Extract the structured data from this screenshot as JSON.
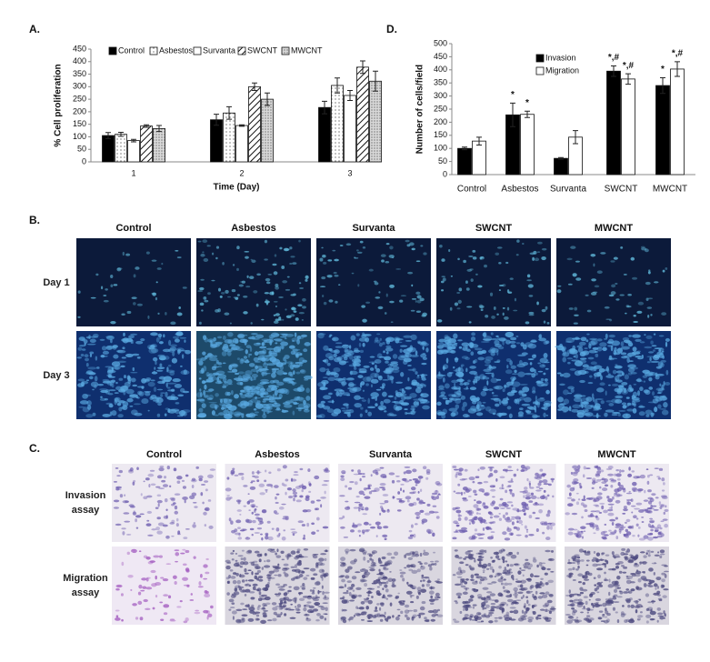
{
  "chart_data": [
    {
      "type": "bar",
      "panel_label": "A.",
      "y_label": "% Cell proliferation",
      "x_label": "Time (Day)",
      "categories": [
        "1",
        "2",
        "3"
      ],
      "ylim": [
        0,
        450
      ],
      "yticks": [
        0,
        50,
        100,
        150,
        200,
        250,
        300,
        350,
        400,
        450
      ],
      "series": [
        {
          "name": "Control",
          "color": "#000000",
          "values": [
            105,
            168,
            217
          ],
          "errors": [
            12,
            22,
            25
          ]
        },
        {
          "name": "Asbestos",
          "color": "#ffffff",
          "pattern": "sparse-dots",
          "values": [
            110,
            195,
            305
          ],
          "errors": [
            8,
            25,
            30
          ]
        },
        {
          "name": "Survanta",
          "color": "#ffffff",
          "values": [
            85,
            145,
            265
          ],
          "errors": [
            5,
            3,
            20
          ]
        },
        {
          "name": "SWCNT",
          "color": "#ffffff",
          "pattern": "diagonal",
          "values": [
            143,
            300,
            378
          ],
          "errors": [
            5,
            15,
            25
          ]
        },
        {
          "name": "MWCNT",
          "color": "#d9d9d9",
          "pattern": "dense-dots",
          "values": [
            133,
            250,
            322
          ],
          "errors": [
            12,
            25,
            40
          ]
        }
      ]
    },
    {
      "type": "bar",
      "panel_label": "D.",
      "y_label": "Number of cells/field",
      "categories": [
        "Control",
        "Asbestos",
        "Survanta",
        "SWCNT",
        "MWCNT"
      ],
      "ylim": [
        0,
        500
      ],
      "yticks": [
        0,
        50,
        100,
        150,
        200,
        250,
        300,
        350,
        400,
        450,
        500
      ],
      "series": [
        {
          "name": "Invasion",
          "color": "#000000",
          "values": [
            100,
            228,
            62,
            395,
            340
          ],
          "errors": [
            5,
            45,
            3,
            20,
            30
          ],
          "annotations": [
            null,
            "*",
            null,
            "*,#",
            "*"
          ]
        },
        {
          "name": "Migration",
          "color": "#ffffff",
          "values": [
            128,
            230,
            143,
            365,
            403
          ],
          "errors": [
            15,
            12,
            25,
            20,
            28
          ],
          "annotations": [
            null,
            "*",
            null,
            "*,#",
            "*,#"
          ]
        }
      ]
    }
  ],
  "panel_b": {
    "label": "B.",
    "columns": [
      "Control",
      "Asbestos",
      "Survanta",
      "SWCNT",
      "MWCNT"
    ],
    "rows": [
      "Day 1",
      "Day 3"
    ]
  },
  "panel_c": {
    "label": "C.",
    "columns": [
      "Control",
      "Asbestos",
      "Survanta",
      "SWCNT",
      "MWCNT"
    ],
    "rows": [
      "Invasion assay",
      "Migration assay"
    ]
  }
}
